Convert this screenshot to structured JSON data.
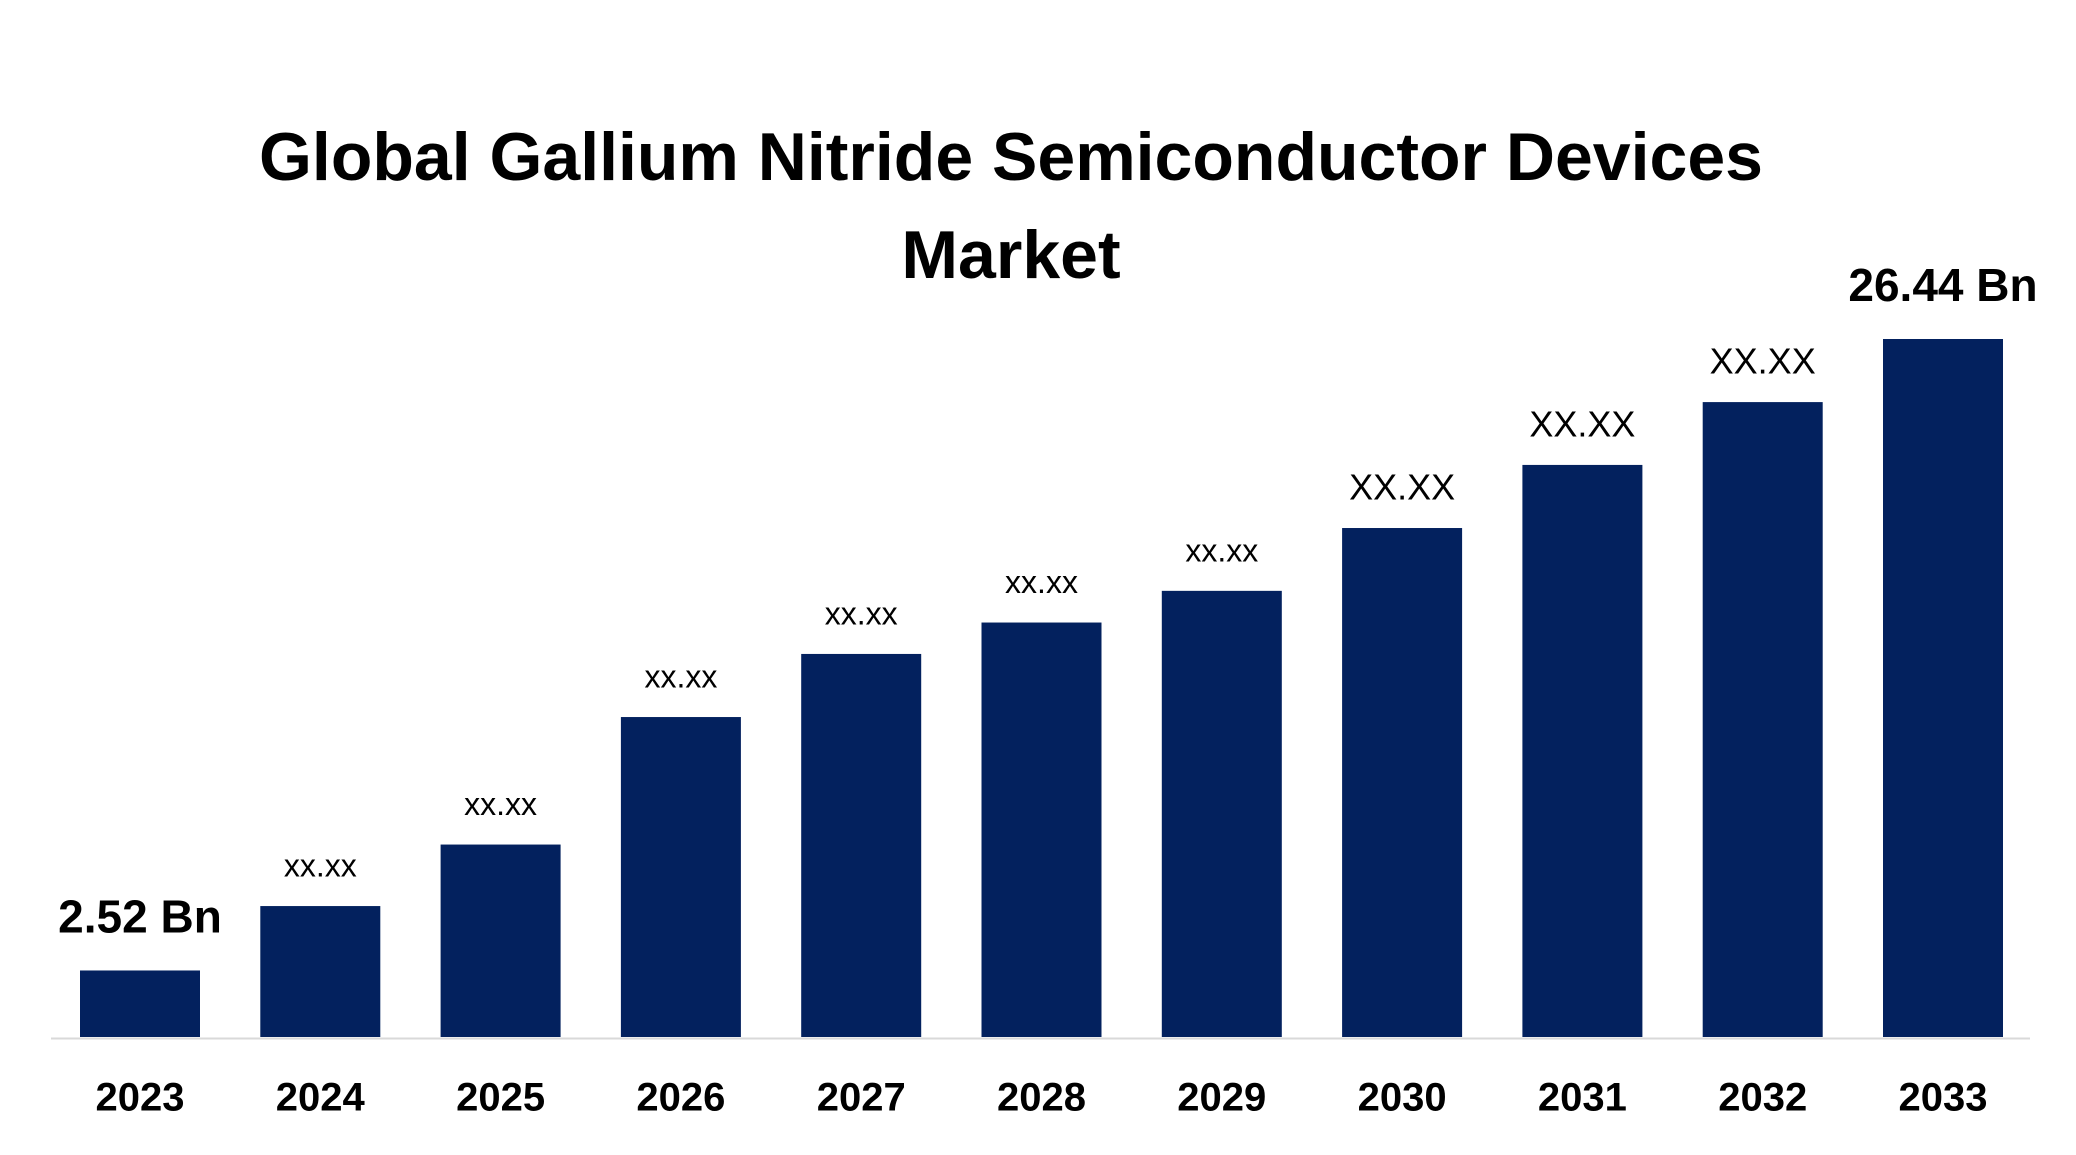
{
  "chart_data": {
    "type": "bar",
    "title": "Global Gallium Nitride Semiconductor Devices Market",
    "categories": [
      "2023",
      "2024",
      "2025",
      "2026",
      "2027",
      "2028",
      "2029",
      "2030",
      "2031",
      "2032",
      "2033"
    ],
    "values": [
      2.52,
      4.96,
      7.29,
      12.12,
      14.51,
      15.7,
      16.9,
      19.28,
      21.67,
      24.05,
      26.44
    ],
    "value_labels": [
      "2.52 Bn",
      "xx.xx",
      "xx.xx",
      "xx.xx",
      "xx.xx",
      "xx.xx",
      "xx.xx",
      "XX.XX",
      "XX.XX",
      "XX.XX",
      "26.44 Bn"
    ],
    "color": "#03215e"
  }
}
